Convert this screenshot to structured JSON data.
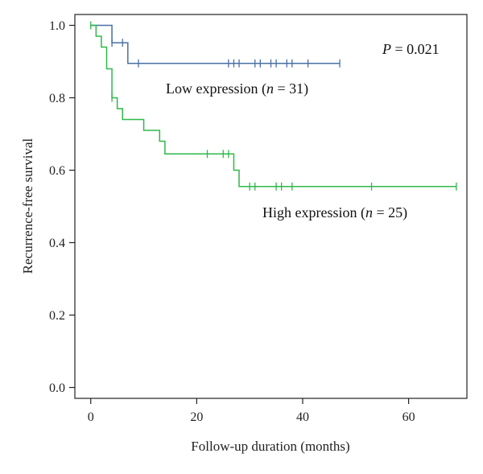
{
  "chart_data": {
    "type": "line",
    "subtype": "kaplan-meier step",
    "title": "",
    "xlabel": "Follow-up duration (months)",
    "ylabel": "Recurrence-free survival",
    "xlim": [
      -3,
      71
    ],
    "ylim": [
      -0.03,
      1.03
    ],
    "xticks": [
      0,
      20,
      40,
      60
    ],
    "yticks": [
      0.0,
      0.2,
      0.4,
      0.6,
      0.8,
      1.0
    ],
    "xtick_labels": [
      "0",
      "20",
      "40",
      "60"
    ],
    "ytick_labels": [
      "0.0",
      "0.2",
      "0.4",
      "0.6",
      "0.8",
      "1.0"
    ],
    "grid": false,
    "p_value": {
      "prefix": "P",
      "text": " = 0.021"
    },
    "series": [
      {
        "name": "Low expression (n = 31)",
        "label_parts": {
          "before": "Low expression (",
          "italic": "n",
          "after": " = 31)"
        },
        "color": "#4a6fa5",
        "steps": [
          [
            0,
            1.0
          ],
          [
            4,
            0.952
          ],
          [
            7,
            0.895
          ],
          [
            47,
            0.895
          ]
        ],
        "censor_x": [
          4,
          6,
          9,
          26,
          27,
          28,
          31,
          32,
          34,
          35,
          37,
          38,
          41,
          47
        ]
      },
      {
        "name": "High expression (n = 25)",
        "label_parts": {
          "before": "High expression (",
          "italic": "n",
          "after": " = 25)"
        },
        "color": "#2fb84a",
        "steps": [
          [
            0,
            1.0
          ],
          [
            1,
            0.97
          ],
          [
            2,
            0.94
          ],
          [
            3,
            0.88
          ],
          [
            4,
            0.8
          ],
          [
            5,
            0.77
          ],
          [
            6,
            0.74
          ],
          [
            10,
            0.71
          ],
          [
            13,
            0.68
          ],
          [
            14,
            0.645
          ],
          [
            27,
            0.6
          ],
          [
            28,
            0.555
          ],
          [
            69,
            0.555
          ]
        ],
        "censor_x": [
          0,
          4,
          22,
          25,
          26,
          30,
          31,
          35,
          36,
          38,
          53,
          69
        ]
      }
    ]
  }
}
